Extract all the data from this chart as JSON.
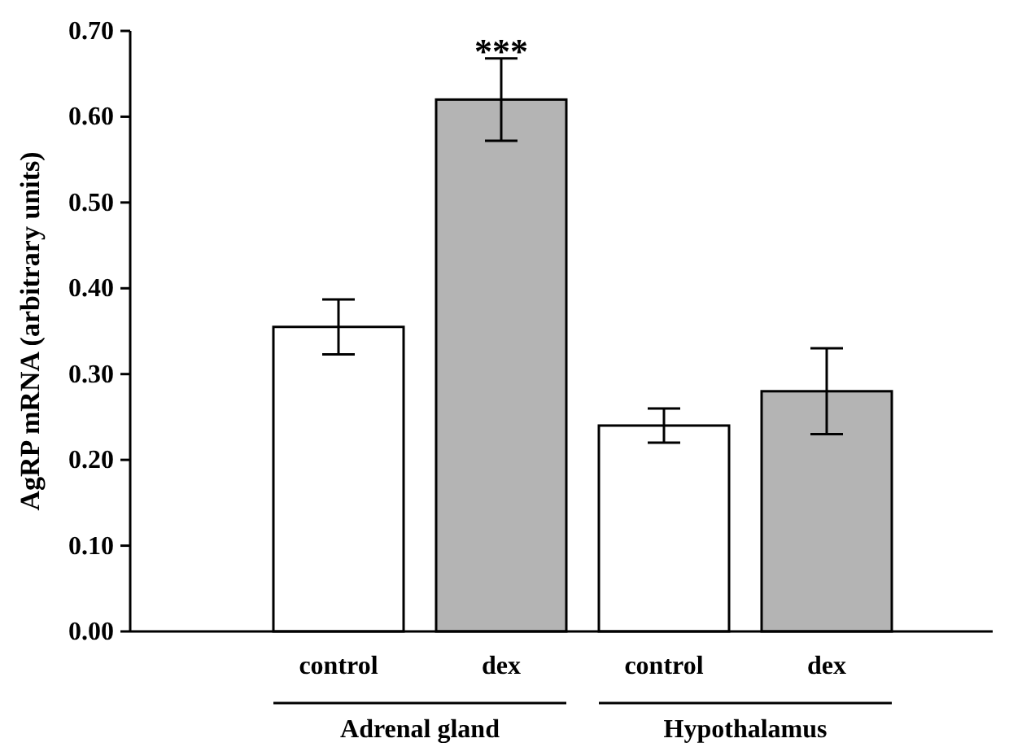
{
  "chart_data": {
    "type": "bar",
    "ylabel": "AgRP mRNA (arbitrary units)",
    "categories": [
      "control",
      "dex",
      "control",
      "dex"
    ],
    "values": [
      0.355,
      0.62,
      0.24,
      0.28
    ],
    "errors": [
      0.032,
      0.048,
      0.02,
      0.05
    ],
    "colors": [
      "#ffffff",
      "#b4b4b4",
      "#ffffff",
      "#b4b4b4"
    ],
    "ylim": [
      0,
      0.7
    ],
    "yticks": [
      {
        "value": 0,
        "label": "0.00"
      },
      {
        "value": 0.1,
        "label": "0.10"
      },
      {
        "value": 0.2,
        "label": "0.20"
      },
      {
        "value": 0.3,
        "label": "0.30"
      },
      {
        "value": 0.4,
        "label": "0.40"
      },
      {
        "value": 0.5,
        "label": "0.50"
      },
      {
        "value": 0.6,
        "label": "0.60"
      },
      {
        "value": 0.7,
        "label": "0.70"
      }
    ],
    "annotations": [
      {
        "text": "***",
        "x": "dex",
        "y": 0.67
      },
      "Adrenal gland",
      "Hypothalamus"
    ],
    "grid": false
  }
}
